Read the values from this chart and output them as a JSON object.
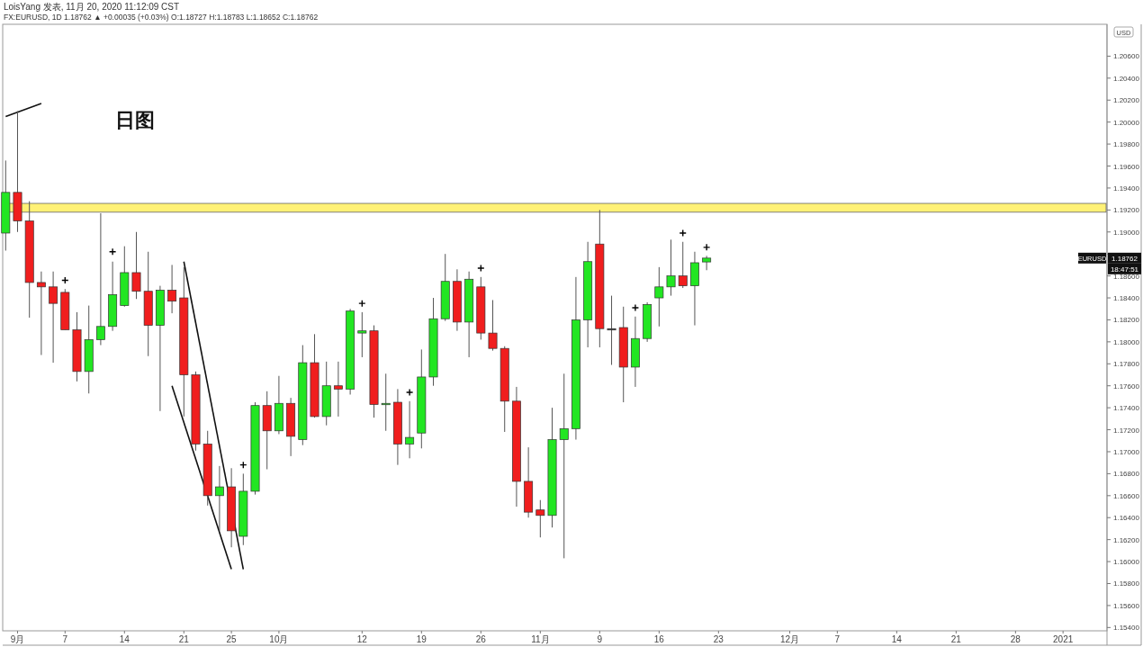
{
  "chart_data": {
    "type": "candlestick",
    "title": "LoisYang 发表, 11月 20, 2020 11:12:09 CST",
    "subtitle": "FX:EURUSD, 1D 1.18762 ▲ +0.00035 (+0.03%) O:1.18727 H:1.18783 L:1.18652 C:1.18762",
    "categories": [
      null,
      "9月",
      null,
      null,
      null,
      "7",
      null,
      null,
      null,
      null,
      "14",
      null,
      null,
      null,
      null,
      "21",
      null,
      null,
      null,
      "25",
      null,
      null,
      null,
      "10月",
      null,
      null,
      null,
      null,
      null,
      null,
      "12",
      null,
      null,
      null,
      null,
      "19",
      null,
      null,
      null,
      null,
      "26",
      null,
      null,
      null,
      null,
      "11月",
      null,
      null,
      null,
      null,
      "9",
      null,
      null,
      null,
      null,
      "16",
      null,
      null,
      null,
      null,
      "23",
      null,
      null,
      null,
      null,
      null,
      "12月",
      null,
      null,
      null,
      "7",
      null,
      null,
      null,
      null,
      "14",
      null,
      null,
      null,
      null,
      "21",
      null,
      null,
      null,
      null,
      "28",
      null,
      null,
      null,
      "2021",
      null,
      null,
      null
    ],
    "ohlc": [
      [
        1.1899,
        1.1965,
        1.1883,
        1.1936
      ],
      [
        1.1936,
        1.201,
        1.19,
        1.191
      ],
      [
        1.191,
        1.1928,
        1.1822,
        1.1854
      ],
      [
        1.1854,
        1.1864,
        1.1788,
        1.185
      ],
      [
        1.185,
        1.1864,
        1.1781,
        1.1835
      ],
      [
        1.1845,
        1.1848,
        1.1811,
        1.1811
      ],
      [
        1.1811,
        1.1827,
        1.1764,
        1.1773
      ],
      [
        1.1773,
        1.1833,
        1.1753,
        1.1802
      ],
      [
        1.1802,
        1.1917,
        1.1797,
        1.1814
      ],
      [
        1.1814,
        1.1873,
        1.181,
        1.1843
      ],
      [
        1.1833,
        1.1887,
        1.1832,
        1.1863
      ],
      [
        1.1863,
        1.19,
        1.1839,
        1.1846
      ],
      [
        1.1846,
        1.1882,
        1.1787,
        1.1815
      ],
      [
        1.1815,
        1.1851,
        1.1737,
        1.1847
      ],
      [
        1.1847,
        1.187,
        1.1826,
        1.1837
      ],
      [
        1.184,
        1.1868,
        1.1732,
        1.177
      ],
      [
        1.177,
        1.1773,
        1.1701,
        1.1707
      ],
      [
        1.1707,
        1.1719,
        1.1651,
        1.166
      ],
      [
        1.166,
        1.1687,
        1.1628,
        1.1668
      ],
      [
        1.1668,
        1.1685,
        1.1613,
        1.1628
      ],
      [
        1.1623,
        1.168,
        1.1615,
        1.1664
      ],
      [
        1.1664,
        1.1745,
        1.1661,
        1.1742
      ],
      [
        1.1742,
        1.1755,
        1.1684,
        1.1719
      ],
      [
        1.1719,
        1.1769,
        1.1716,
        1.1744
      ],
      [
        1.1744,
        1.1749,
        1.1696,
        1.1714
      ],
      [
        1.1711,
        1.1797,
        1.1706,
        1.1781
      ],
      [
        1.1781,
        1.1807,
        1.1731,
        1.1732
      ],
      [
        1.1732,
        1.1782,
        1.1724,
        1.176
      ],
      [
        1.176,
        1.1782,
        1.1732,
        1.1757
      ],
      [
        1.1757,
        1.183,
        1.1752,
        1.1828
      ],
      [
        1.1808,
        1.1827,
        1.1786,
        1.181
      ],
      [
        1.181,
        1.1815,
        1.1731,
        1.1743
      ],
      [
        1.1743,
        1.1771,
        1.1719,
        1.1744
      ],
      [
        1.1745,
        1.1757,
        1.1688,
        1.1707
      ],
      [
        1.1707,
        1.1746,
        1.1694,
        1.1713
      ],
      [
        1.1717,
        1.1793,
        1.1703,
        1.1768
      ],
      [
        1.1768,
        1.184,
        1.176,
        1.1821
      ],
      [
        1.1821,
        1.188,
        1.1819,
        1.1855
      ],
      [
        1.1855,
        1.1866,
        1.181,
        1.1818
      ],
      [
        1.1818,
        1.1864,
        1.1786,
        1.1857
      ],
      [
        1.185,
        1.1859,
        1.1802,
        1.1808
      ],
      [
        1.1808,
        1.1838,
        1.1792,
        1.1794
      ],
      [
        1.1794,
        1.1796,
        1.1718,
        1.1746
      ],
      [
        1.1746,
        1.1759,
        1.165,
        1.1673
      ],
      [
        1.1673,
        1.1704,
        1.164,
        1.1645
      ],
      [
        1.1647,
        1.1656,
        1.1622,
        1.1642
      ],
      [
        1.1642,
        1.174,
        1.1631,
        1.1711
      ],
      [
        1.1711,
        1.1771,
        1.1603,
        1.1721
      ],
      [
        1.1721,
        1.1859,
        1.1711,
        1.182
      ],
      [
        1.182,
        1.1891,
        1.1795,
        1.1873
      ],
      [
        1.1889,
        1.192,
        1.1795,
        1.1812
      ],
      [
        1.1812,
        1.1842,
        1.1779,
        1.1812
      ],
      [
        1.1813,
        1.1832,
        1.1745,
        1.1777
      ],
      [
        1.1777,
        1.1823,
        1.1759,
        1.1803
      ],
      [
        1.1803,
        1.1836,
        1.18,
        1.1834
      ],
      [
        1.184,
        1.1868,
        1.1814,
        1.185
      ],
      [
        1.185,
        1.1893,
        1.1842,
        1.186
      ],
      [
        1.186,
        1.1891,
        1.1849,
        1.1851
      ],
      [
        1.1851,
        1.1882,
        1.1815,
        1.1872
      ],
      [
        1.18727,
        1.18783,
        1.18652,
        1.18762
      ],
      null,
      null,
      null,
      null,
      null,
      null,
      null,
      null,
      null,
      null,
      null,
      null,
      null,
      null,
      null,
      null,
      null,
      null,
      null,
      null,
      null,
      null,
      null,
      null,
      null,
      null,
      null,
      null,
      null,
      null,
      null,
      null,
      null
    ],
    "colors": [
      "#22e622",
      "#f01e1e",
      "#f01e1e",
      "#f01e1e",
      "#f01e1e",
      "#f01e1e",
      "#f01e1e",
      "#22e622",
      "#22e622",
      "#22e622",
      "#22e622",
      "#f01e1e",
      "#f01e1e",
      "#22e622",
      "#f01e1e",
      "#f01e1e",
      "#f01e1e",
      "#f01e1e",
      "#22e622",
      "#f01e1e",
      "#22e622",
      "#22e622",
      "#f01e1e",
      "#22e622",
      "#f01e1e",
      "#22e622",
      "#f01e1e",
      "#22e622",
      "#f01e1e",
      "#22e622",
      "#22e622",
      "#f01e1e",
      "#22e622",
      "#f01e1e",
      "#22e622",
      "#22e622",
      "#22e622",
      "#22e622",
      "#f01e1e",
      "#22e622",
      "#f01e1e",
      "#f01e1e",
      "#f01e1e",
      "#f01e1e",
      "#f01e1e",
      "#f01e1e",
      "#22e622",
      "#22e622",
      "#22e622",
      "#22e622",
      "#f01e1e",
      "#333333",
      "#f01e1e",
      "#22e622",
      "#22e622",
      "#22e622",
      "#22e622",
      "#f01e1e",
      "#22e622",
      "#22e622",
      null,
      null,
      null,
      null,
      null,
      null,
      null,
      null,
      null,
      null,
      null,
      null,
      null,
      null,
      null,
      null,
      null,
      null,
      null,
      null,
      null,
      null,
      null,
      null,
      null,
      null,
      null,
      null,
      null,
      null,
      null,
      null,
      null
    ],
    "series": [
      {
        "type": "scatter",
        "marker": "cross",
        "color": "#000000",
        "values": [
          null,
          null,
          null,
          null,
          null,
          1.1856,
          null,
          null,
          null,
          1.1882,
          null,
          null,
          null,
          null,
          null,
          null,
          null,
          null,
          null,
          null,
          1.1688,
          null,
          null,
          null,
          null,
          null,
          null,
          null,
          null,
          null,
          1.1835,
          null,
          null,
          null,
          1.1754,
          null,
          null,
          null,
          null,
          null,
          1.1867,
          null,
          null,
          null,
          null,
          null,
          null,
          null,
          null,
          null,
          null,
          null,
          null,
          1.1831,
          null,
          null,
          null,
          1.1899,
          null,
          1.1886,
          null,
          null,
          null,
          null,
          null,
          null,
          null,
          null,
          null,
          null,
          null,
          null,
          null,
          null,
          null,
          null,
          null,
          null,
          null,
          null,
          null,
          null,
          null,
          null,
          null,
          null,
          null,
          null,
          null,
          null,
          null,
          null,
          null
        ]
      },
      {
        "type": "line",
        "color": "#111111",
        "values": [
          null,
          null,
          null,
          null,
          null,
          null,
          null,
          null,
          null,
          null,
          null,
          null,
          null,
          null,
          null,
          1.1873,
          null,
          null,
          null,
          null,
          1.1593,
          null,
          null,
          null,
          null,
          null,
          null,
          null,
          null,
          null,
          null,
          null,
          null,
          null,
          null,
          null,
          null,
          null,
          null,
          null,
          null,
          null,
          null,
          null,
          null,
          null,
          null,
          null,
          null,
          null,
          null,
          null,
          null,
          null,
          null,
          null,
          null,
          null,
          null,
          null,
          null,
          null,
          null,
          null,
          null,
          null,
          null,
          null,
          null,
          null,
          null,
          null,
          null,
          null,
          null,
          null,
          null,
          null,
          null,
          null,
          null,
          null,
          null,
          null,
          null,
          null,
          null,
          null,
          null,
          null,
          null,
          null,
          null
        ]
      },
      {
        "type": "line",
        "color": "#111111",
        "values": [
          null,
          null,
          null,
          null,
          null,
          null,
          null,
          null,
          null,
          null,
          null,
          null,
          null,
          null,
          1.176,
          null,
          null,
          null,
          null,
          1.1593,
          null,
          null,
          null,
          null,
          null,
          null,
          null,
          null,
          null,
          null,
          null,
          null,
          null,
          null,
          null,
          null,
          null,
          null,
          null,
          null,
          null,
          null,
          null,
          null,
          null,
          null,
          null,
          null,
          null,
          null,
          null,
          null,
          null,
          null,
          null,
          null,
          null,
          null,
          null,
          null,
          null,
          null,
          null,
          null,
          null,
          null,
          null,
          null,
          null,
          null,
          null,
          null,
          null,
          null,
          null,
          null,
          null,
          null,
          null,
          null,
          null,
          null,
          null,
          null,
          null,
          null,
          null,
          null,
          null,
          null,
          null,
          null,
          null
        ]
      },
      {
        "type": "line",
        "color": "#111111",
        "values": [
          1.2005,
          null,
          null,
          1.2017,
          null,
          null,
          null,
          null,
          null,
          null,
          null,
          null,
          null,
          null,
          null,
          null,
          null,
          null,
          null,
          null,
          null,
          null,
          null,
          null,
          null,
          null,
          null,
          null,
          null,
          null,
          null,
          null,
          null,
          null,
          null,
          null,
          null,
          null,
          null,
          null,
          null,
          null,
          null,
          null,
          null,
          null,
          null,
          null,
          null,
          null,
          null,
          null,
          null,
          null,
          null,
          null,
          null,
          null,
          null,
          null,
          null,
          null,
          null,
          null,
          null,
          null,
          null,
          null,
          null,
          null,
          null,
          null,
          null,
          null,
          null,
          null,
          null,
          null,
          null,
          null,
          null,
          null,
          null,
          null,
          null,
          null,
          null,
          null,
          null,
          null,
          null,
          null,
          null
        ]
      }
    ],
    "bands": [
      {
        "axis": "y",
        "from": 1.1918,
        "to": 1.1926,
        "color": "#fff176"
      }
    ],
    "ylim": [
      1.1537,
      1.2089
    ],
    "yticks": [
      {
        "value": 1.154,
        "label": "1.15400"
      },
      {
        "value": 1.156,
        "label": "1.15600"
      },
      {
        "value": 1.158,
        "label": "1.15800"
      },
      {
        "value": 1.16,
        "label": "1.16000"
      },
      {
        "value": 1.162,
        "label": "1.16200"
      },
      {
        "value": 1.164,
        "label": "1.16400"
      },
      {
        "value": 1.166,
        "label": "1.16600"
      },
      {
        "value": 1.168,
        "label": "1.16800"
      },
      {
        "value": 1.17,
        "label": "1.17000"
      },
      {
        "value": 1.172,
        "label": "1.17200"
      },
      {
        "value": 1.174,
        "label": "1.17400"
      },
      {
        "value": 1.176,
        "label": "1.17600"
      },
      {
        "value": 1.178,
        "label": "1.17800"
      },
      {
        "value": 1.18,
        "label": "1.18000"
      },
      {
        "value": 1.182,
        "label": "1.18200"
      },
      {
        "value": 1.184,
        "label": "1.18400"
      },
      {
        "value": 1.186,
        "label": "1.18600"
      },
      {
        "value": 1.188,
        "label": null
      },
      {
        "value": 1.19,
        "label": "1.19000"
      },
      {
        "value": 1.192,
        "label": "1.19200"
      },
      {
        "value": 1.194,
        "label": "1.19400"
      },
      {
        "value": 1.196,
        "label": "1.19600"
      },
      {
        "value": 1.198,
        "label": "1.19800"
      },
      {
        "value": 1.2,
        "label": "1.20000"
      },
      {
        "value": 1.202,
        "label": "1.20200"
      },
      {
        "value": 1.204,
        "label": "1.20400"
      },
      {
        "value": 1.206,
        "label": "1.20600"
      }
    ],
    "annotations": [
      "日图",
      {
        "text": "EURUSD",
        "y": 1.18762
      },
      {
        "text": "1.18762",
        "y": 1.18762
      },
      "18:47:51",
      "USD"
    ]
  }
}
